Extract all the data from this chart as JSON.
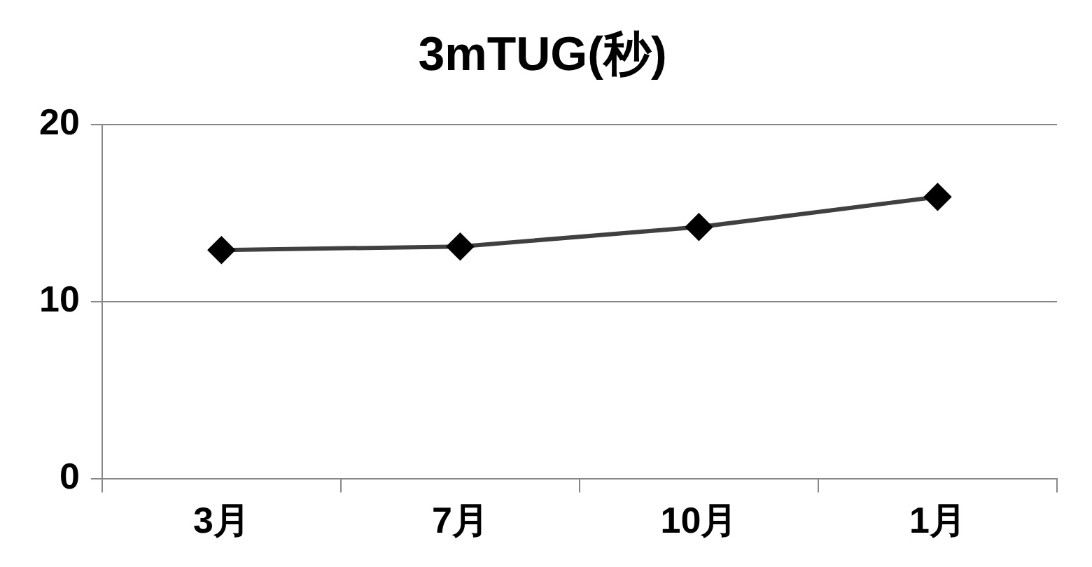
{
  "chart_data": {
    "type": "line",
    "title": "3mTUG(秒)",
    "categories": [
      "3月",
      "7月",
      "10月",
      "1月"
    ],
    "series": [
      {
        "color": "#404040",
        "values": [
          12.9,
          13.1,
          14.2,
          15.9
        ]
      }
    ],
    "ylim": [
      0,
      20
    ],
    "yticks": [
      0,
      10,
      20
    ],
    "grid": "y",
    "legend": false,
    "marker": "diamond",
    "line_style": "solid"
  }
}
